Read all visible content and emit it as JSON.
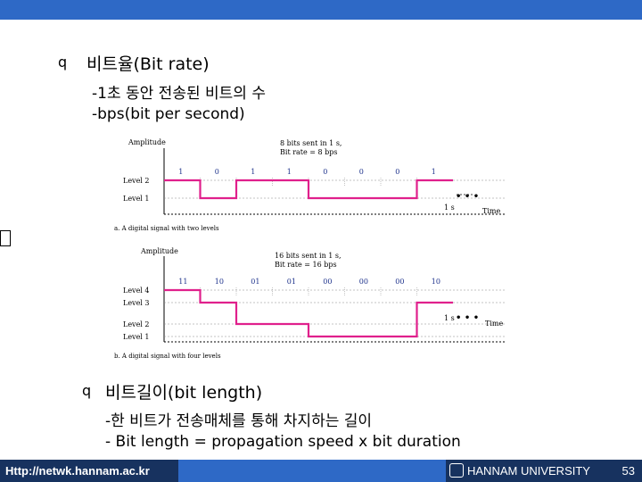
{
  "slide": {
    "section1_title": "비트율(Bit rate)",
    "section1_lines": [
      "-1초 동안 전송된 비트의 수",
      "-bps(bit per second)"
    ],
    "section2_title": "비트길이(bit length)",
    "section2_lines": [
      "-한 비트가 전송매체를 통해 차지하는 길이",
      "- Bit length = propagation speed x bit duration"
    ],
    "bullet_glyph": "q"
  },
  "figure_a": {
    "amplitude": "Amplitude",
    "note_line1": "8 bits sent in 1 s,",
    "note_line2": "Bit rate = 8 bps",
    "bits": [
      "1",
      "0",
      "1",
      "1",
      "0",
      "0",
      "0",
      "1"
    ],
    "levels": [
      "Level 2",
      "Level 1"
    ],
    "time_tick": "1 s",
    "time_label": "Time",
    "caption": "a. A digital signal with two levels",
    "signal_color": "#e0208c"
  },
  "figure_b": {
    "amplitude": "Amplitude",
    "note_line1": "16 bits sent in 1 s,",
    "note_line2": "Bit rate = 16 bps",
    "symbols": [
      "11",
      "10",
      "01",
      "01",
      "00",
      "00",
      "00",
      "10"
    ],
    "levels": [
      "Level 4",
      "Level 3",
      "Level 2",
      "Level 1"
    ],
    "time_tick": "1 s",
    "time_label": "Time",
    "caption": "b. A digital signal with four levels",
    "signal_color": "#e0208c"
  },
  "footer": {
    "url": "Http://netwk.hannam.ac.kr",
    "university": "HANNAM UNIVERSITY",
    "page": "53"
  },
  "colors": {
    "topbar": "#2e69c6",
    "footer_dark": "#17325f",
    "signal": "#e0208c"
  }
}
